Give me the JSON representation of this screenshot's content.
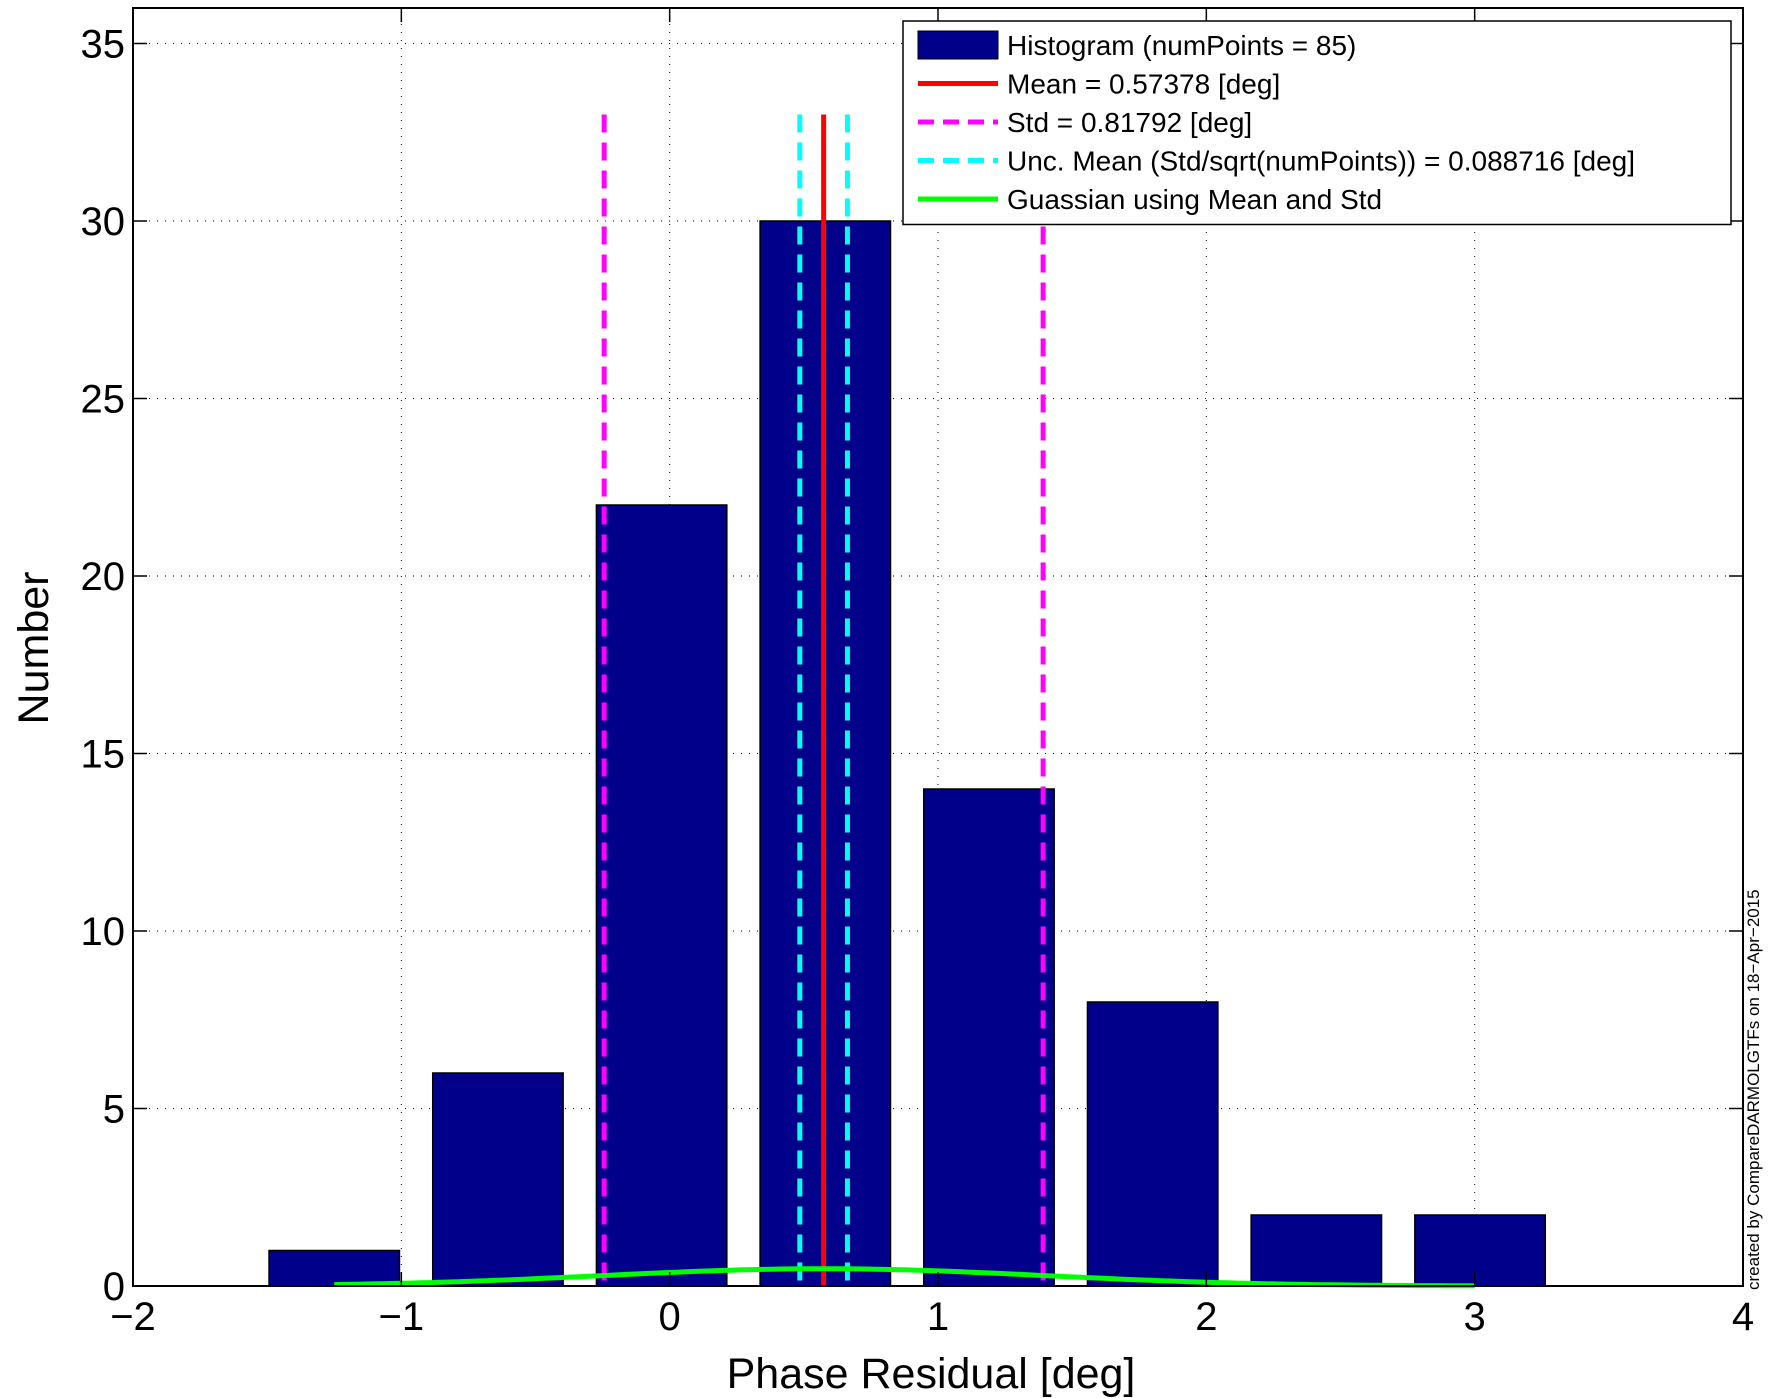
{
  "chart_data": {
    "type": "bar",
    "xlabel": "Phase Residual [deg]",
    "ylabel": "Number",
    "xlim": [
      -2,
      4
    ],
    "ylim": [
      0,
      36
    ],
    "xticks": [
      -2,
      -1,
      0,
      1,
      2,
      3,
      4
    ],
    "xtick_labels": [
      "−2",
      "−1",
      "0",
      "1",
      "2",
      "3",
      "4"
    ],
    "yticks": [
      0,
      5,
      10,
      15,
      20,
      25,
      30,
      35
    ],
    "ytick_labels": [
      "0",
      "5",
      "10",
      "15",
      "20",
      "25",
      "30",
      "35"
    ],
    "grid": true,
    "legend_position": "top-right",
    "bar_width": 0.486,
    "bars": {
      "centers": [
        -1.25,
        -0.64,
        -0.03,
        0.58,
        1.19,
        1.8,
        2.41,
        3.02
      ],
      "values": [
        1,
        6,
        22,
        30,
        14,
        8,
        2,
        2
      ]
    },
    "vlines": [
      {
        "id": "mean",
        "x": 0.57378,
        "y_top": 33,
        "style": "solid",
        "color": "#ff0000"
      },
      {
        "id": "std-low",
        "x": -0.24414,
        "y_top": 33,
        "style": "dashed",
        "color": "#ff00ff"
      },
      {
        "id": "std-high",
        "x": 1.3917,
        "y_top": 33,
        "style": "dashed",
        "color": "#ff00ff"
      },
      {
        "id": "unc-low",
        "x": 0.48506,
        "y_top": 33,
        "style": "dashed",
        "color": "#00ffff"
      },
      {
        "id": "unc-high",
        "x": 0.6625,
        "y_top": 33,
        "style": "dashed",
        "color": "#00ffff"
      }
    ],
    "gaussian": {
      "mean": 0.57378,
      "std": 0.81792,
      "x_range": [
        -1.25,
        3.0
      ],
      "color": "#00ff00"
    },
    "series": [
      {
        "name": "Histogram (numPoints = 85)",
        "kind": "bar",
        "color": "#00008b"
      },
      {
        "name": "Mean = 0.57378 [deg]",
        "kind": "line",
        "color": "#ff0000"
      },
      {
        "name": "Std = 0.81792 [deg]",
        "kind": "dashed",
        "color": "#ff00ff"
      },
      {
        "name": "Unc. Mean (Std/sqrt(numPoints)) = 0.088716 [deg]",
        "kind": "dashed",
        "color": "#00ffff"
      },
      {
        "name": "Guassian using Mean and Std",
        "kind": "line",
        "color": "#00ff00"
      }
    ]
  },
  "credit_text": "created by CompareDARMOLGTFs on 18−Apr−2015"
}
